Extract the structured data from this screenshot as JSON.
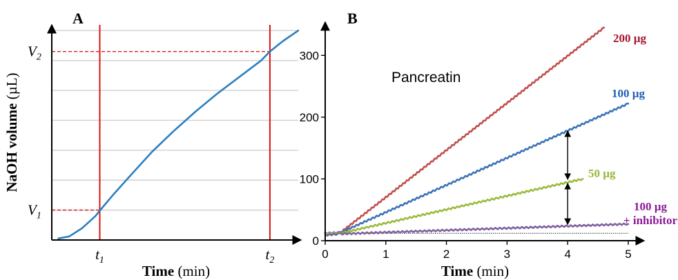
{
  "chart_data": [
    {
      "panel_label": "A",
      "type": "line",
      "ylabel_bold": "NaOH volume",
      "ylabel_unit": " (µL)",
      "xlabel_bold": "Time",
      "xlabel_unit": " (min)",
      "x_ticks": [
        {
          "base": "t",
          "sub": "1",
          "x": 2.2
        },
        {
          "base": "t",
          "sub": "2",
          "x": 10.0
        }
      ],
      "y_ticks": [
        {
          "base": "V",
          "sub": "1",
          "y": 1.0
        },
        {
          "base": "V",
          "sub": "2",
          "y": 6.3
        }
      ],
      "xlim": [
        0,
        11.3
      ],
      "ylim": [
        0,
        7.1
      ],
      "grid": true,
      "grid_y": [
        1,
        2,
        3,
        4,
        5,
        6,
        7
      ],
      "series": [
        {
          "color": "#2b7fc0",
          "x": [
            0.3,
            0.8,
            1.4,
            2.0,
            2.2,
            2.8,
            3.6,
            4.6,
            5.6,
            6.6,
            7.6,
            8.6,
            9.6,
            10.0,
            10.6,
            11.3
          ],
          "y": [
            0.05,
            0.12,
            0.4,
            0.8,
            0.98,
            1.5,
            2.15,
            2.95,
            3.65,
            4.3,
            4.9,
            5.45,
            6.0,
            6.3,
            6.65,
            7.0
          ]
        }
      ],
      "markers_vertical": [
        2.2,
        10.0
      ],
      "markers_horizontal": [
        {
          "y": 1.0,
          "x_end": 2.2
        },
        {
          "y": 6.3,
          "x_end": 10.0
        }
      ]
    },
    {
      "panel_label": "B",
      "type": "line",
      "annotation": "Pancreatin",
      "xlabel_bold": "Time",
      "xlabel_unit": " (min)",
      "xlim": [
        0,
        5
      ],
      "ylim": [
        0,
        345
      ],
      "x_ticks": [
        0,
        1,
        2,
        3,
        4,
        5
      ],
      "y_ticks": [
        0,
        100,
        200,
        300
      ],
      "baseline_y": 12,
      "series": [
        {
          "name": "200 µg",
          "color": "#c0504d",
          "label_color": "#a5162c",
          "x": [
            0,
            0.25,
            4.6
          ],
          "y": [
            12,
            13,
            345
          ]
        },
        {
          "name": "100 µg",
          "color": "#3e73b8",
          "label_color": "#1f5fb5",
          "x": [
            0,
            0.25,
            5.0
          ],
          "y": [
            12,
            13,
            222
          ]
        },
        {
          "name": "50 µg",
          "color": "#9bbb3b",
          "label_color": "#95b83a",
          "x": [
            0,
            0.25,
            4.25
          ],
          "y": [
            11,
            12,
            100
          ]
        },
        {
          "name": "100 µg",
          "name_line2": "+ inhibitor",
          "color": "#8060a0",
          "label_color": "#8a1a99",
          "x": [
            0,
            0.25,
            5.0
          ],
          "y": [
            9,
            11,
            27
          ]
        }
      ],
      "double_arrows": [
        {
          "x": 4.0,
          "y_from": 180,
          "y_to": 97
        },
        {
          "x": 4.0,
          "y_from": 95,
          "y_to": 24
        }
      ]
    }
  ]
}
